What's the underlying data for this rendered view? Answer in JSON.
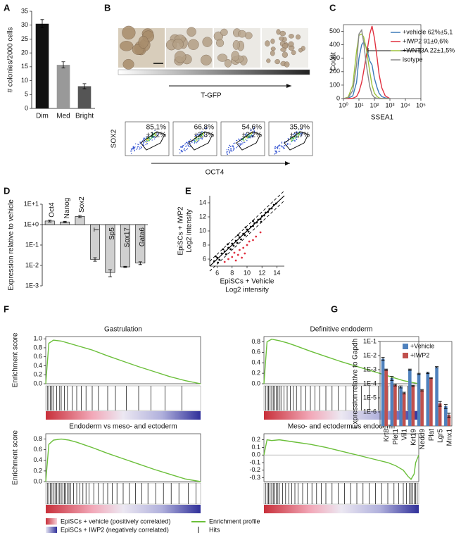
{
  "panel_labels": [
    "A",
    "B",
    "C",
    "D",
    "E",
    "F",
    "G"
  ],
  "panel_b": {
    "gradient_label": "T-GFP",
    "facs_gates": [
      [
        "85,1%",
        "±1,2%"
      ],
      [
        "66,8%",
        "±3,3%"
      ],
      [
        "54,6%",
        "±2,2%"
      ],
      [
        "35,9%",
        "±2,7%"
      ]
    ],
    "facs_x_label": "OCT4",
    "facs_y_label": "SOX2"
  },
  "gsea_legend": {
    "vehicle": "EpiSCs + vehicle (positively correlated)",
    "iwp2": "EpiSCs + IWP2 (negatively correlated)",
    "profile": "Enrichment profile",
    "hits": "Hits"
  },
  "chart_data": [
    {
      "type": "bar",
      "ylabel": "# colonies/2000 cells",
      "categories": [
        "Dim",
        "Med",
        "Bright"
      ],
      "values": [
        30.5,
        15.7,
        8
      ],
      "errors": [
        1.5,
        1.1,
        0.9
      ],
      "colors": [
        "#111111",
        "#999999",
        "#555555"
      ],
      "ylim": [
        0,
        35
      ],
      "yticks": [
        0,
        5,
        10,
        15,
        20,
        25,
        30,
        35
      ]
    },
    {
      "type": "line",
      "xlabel": "SSEA1",
      "ylabel": "Count",
      "xscale": "log",
      "x": [
        1,
        2,
        4,
        7,
        10,
        15,
        20,
        30,
        50,
        70,
        100,
        150,
        200,
        300,
        500,
        1000
      ],
      "series": [
        {
          "name": "+vehicle 62%±5,1",
          "color": "#3d7ab8",
          "values": [
            0,
            2,
            20,
            120,
            300,
            400,
            420,
            380,
            280,
            250,
            150,
            80,
            40,
            15,
            5,
            0
          ]
        },
        {
          "name": "+IWP2 91±0,6%",
          "color": "#e0303f",
          "values": [
            0,
            0,
            2,
            15,
            50,
            120,
            200,
            320,
            480,
            540,
            450,
            300,
            180,
            80,
            20,
            0
          ]
        },
        {
          "name": "+WNT3A 22±1,5%",
          "color": "#9cc23c",
          "values": [
            0,
            10,
            100,
            350,
            470,
            480,
            460,
            370,
            200,
            100,
            40,
            15,
            5,
            0,
            0,
            0
          ]
        },
        {
          "name": "isotype",
          "color": "#888888",
          "values": [
            0,
            5,
            60,
            250,
            480,
            510,
            420,
            250,
            90,
            30,
            8,
            2,
            0,
            0,
            0,
            0
          ]
        }
      ],
      "xlim": [
        1,
        100000
      ],
      "xticks": [
        {
          "value": 1,
          "label": "10⁰"
        },
        {
          "value": 10,
          "label": "10¹"
        },
        {
          "value": 100,
          "label": "10²"
        },
        {
          "value": 1000,
          "label": "10³"
        },
        {
          "value": 10000,
          "label": "10⁴"
        },
        {
          "value": 100000,
          "label": "10⁵"
        }
      ],
      "ylim": [
        0,
        550
      ],
      "yticks": [
        0,
        100,
        200,
        300,
        400,
        500
      ]
    },
    {
      "type": "bar",
      "ylabel": "Expression relative to vehicle",
      "yscale": "log",
      "bar_outline": "#000000",
      "categories": [
        "Oct4",
        "Nanog",
        "Sox2",
        "T",
        "Sp5",
        "Sox17",
        "Gata6"
      ],
      "values": [
        1.5,
        1.35,
        2.5,
        0.02,
        0.0045,
        0.0085,
        0.013
      ],
      "errors": [
        0.15,
        0.1,
        0.3,
        0.004,
        0.0017,
        0.0005,
        0.002
      ],
      "color": "#d0d0d0",
      "ylim": [
        0.001,
        10
      ],
      "yticks": [
        {
          "value": 10,
          "label": "1E+1"
        },
        {
          "value": 1,
          "label": "1E+0"
        },
        {
          "value": 0.1,
          "label": "1E-1"
        },
        {
          "value": 0.01,
          "label": "1E-2"
        },
        {
          "value": 0.001,
          "label": "1E-3"
        }
      ]
    },
    {
      "type": "scatter",
      "xlabel": [
        "EpiSCs + Vehicle",
        "Log2 intensity"
      ],
      "ylabel": [
        "EpiSCs + IWP2",
        "Log2 intensity"
      ],
      "series": [
        {
          "color": "#000000",
          "x": [
            6,
            6.3,
            6.6,
            7,
            7.2,
            7.5,
            7.8,
            8,
            8.2,
            8.5,
            8.7,
            9,
            9.2,
            9.5,
            9.7,
            10,
            10.2,
            10.5,
            10.8,
            11,
            11.3,
            11.5,
            11.8,
            12,
            12.3,
            12.5,
            12.8,
            13,
            13.3,
            13.6,
            13.9,
            6.8,
            7.4,
            8.8,
            9.8,
            5.6,
            5.8,
            6.1,
            10.8,
            11.9
          ],
          "values": [
            6.2,
            5.9,
            6.8,
            7.1,
            6.7,
            7.6,
            7.4,
            8.2,
            7.9,
            8.6,
            8.3,
            9.1,
            8.8,
            9.6,
            9.4,
            10.2,
            9.9,
            10.6,
            10.7,
            11.1,
            11.2,
            11.6,
            11.7,
            12.1,
            12.2,
            12.6,
            12.7,
            13.1,
            13.2,
            13.7,
            13.9,
            7.4,
            8.1,
            9.4,
            10.5,
            5.7,
            6.4,
            5.5,
            11.4,
            11.3
          ]
        },
        {
          "color": "#e0303f",
          "x": [
            7,
            7.5,
            8,
            8.3,
            8.8,
            9,
            9.5,
            9.7,
            10,
            10.3,
            10.8,
            11.2,
            8.5,
            9.3,
            11.8
          ],
          "values": [
            5.6,
            6,
            6.3,
            6.9,
            6.6,
            7.3,
            7.6,
            6.8,
            8,
            8.5,
            8.7,
            9.2,
            5.8,
            6.2,
            9.8
          ]
        }
      ],
      "xlim": [
        5,
        15
      ],
      "xticks": [
        6,
        8,
        10,
        12,
        14
      ],
      "ylim": [
        5,
        15
      ],
      "yticks": [
        6,
        8,
        10,
        12,
        14
      ]
    },
    {
      "type": "line",
      "title": "Gastrulation",
      "ylabel": "Enrichment score",
      "x": [
        0,
        2,
        5,
        10,
        15,
        20,
        30,
        40,
        50,
        60,
        70,
        80,
        90,
        100
      ],
      "series": [
        {
          "color": "#6bbf3a",
          "values": [
            0,
            0.9,
            0.97,
            0.95,
            0.9,
            0.85,
            0.75,
            0.62,
            0.5,
            0.38,
            0.27,
            0.16,
            0.07,
            0
          ]
        }
      ],
      "hits": [
        1,
        2,
        3,
        4,
        5,
        7,
        9,
        10,
        12,
        14,
        17,
        20,
        23,
        26,
        30,
        34,
        40,
        45,
        52,
        60,
        68,
        77,
        88
      ],
      "xlim": [
        0,
        100
      ],
      "ylim": [
        0,
        1.05
      ],
      "yticks": [
        {
          "value": 0,
          "label": "0.0"
        },
        0.2,
        0.4,
        0.6,
        0.8,
        {
          "value": 1,
          "label": "1.0"
        }
      ]
    },
    {
      "type": "line",
      "title": "Definitive endoderm",
      "x": [
        0,
        2,
        5,
        10,
        15,
        20,
        30,
        40,
        50,
        60,
        70,
        80,
        90,
        100
      ],
      "series": [
        {
          "color": "#6bbf3a",
          "values": [
            0,
            0.8,
            0.85,
            0.82,
            0.78,
            0.73,
            0.62,
            0.52,
            0.42,
            0.33,
            0.24,
            0.15,
            0.06,
            0
          ]
        }
      ],
      "hits": [
        1,
        2,
        3,
        4,
        5,
        6,
        7,
        8,
        9,
        10,
        11,
        13,
        15,
        17,
        19,
        21,
        24,
        27,
        30,
        33,
        36,
        40,
        44,
        48,
        53,
        58,
        63,
        68,
        74,
        80,
        87,
        93
      ],
      "xlim": [
        0,
        100
      ],
      "ylim": [
        0,
        0.9
      ],
      "yticks": [
        {
          "value": 0,
          "label": "0.0"
        },
        0.2,
        0.4,
        0.6,
        0.8
      ]
    },
    {
      "type": "line",
      "title": "Endoderm vs meso- and ectoderm",
      "ylabel": "Enrichment score",
      "x": [
        0,
        2,
        5,
        10,
        15,
        20,
        30,
        40,
        50,
        60,
        70,
        80,
        90,
        100
      ],
      "series": [
        {
          "color": "#6bbf3a",
          "values": [
            0,
            0.7,
            0.78,
            0.8,
            0.78,
            0.74,
            0.64,
            0.53,
            0.43,
            0.33,
            0.23,
            0.14,
            0.05,
            0
          ]
        }
      ],
      "hits": [
        1,
        2,
        3,
        4,
        5,
        6,
        7,
        8,
        9,
        10,
        11,
        12,
        13,
        14,
        15,
        16,
        18,
        20,
        22,
        24,
        26,
        28,
        31,
        34,
        37,
        40,
        43,
        46,
        50,
        54,
        58,
        62,
        66,
        71,
        76,
        81,
        86,
        92,
        97
      ],
      "xlim": [
        0,
        100
      ],
      "ylim": [
        0,
        0.9
      ],
      "yticks": [
        {
          "value": 0,
          "label": "0.0"
        },
        0.2,
        0.4,
        0.6,
        0.8
      ]
    },
    {
      "type": "line",
      "title": "Meso- and ectoderm vs endoderm",
      "x": [
        0,
        2,
        5,
        10,
        20,
        30,
        40,
        50,
        60,
        70,
        80,
        85,
        90,
        93,
        95,
        97,
        98,
        100
      ],
      "series": [
        {
          "color": "#6bbf3a",
          "values": [
            0,
            0.2,
            0.19,
            0.2,
            0.17,
            0.14,
            0.1,
            0.05,
            0,
            -0.05,
            -0.1,
            -0.14,
            -0.2,
            -0.28,
            -0.32,
            -0.25,
            -0.1,
            0
          ]
        }
      ],
      "hits": [
        1,
        2,
        3,
        4,
        5,
        6,
        7,
        8,
        9,
        10,
        12,
        14,
        16,
        18,
        20,
        22,
        25,
        28,
        31,
        34,
        37,
        40,
        44,
        48,
        52,
        56,
        60,
        64,
        68,
        72,
        76,
        80,
        84,
        87,
        90,
        92,
        94,
        95,
        96,
        97,
        98,
        99
      ],
      "xlim": [
        0,
        100
      ],
      "ylim": [
        -0.35,
        0.28
      ],
      "yticks": [
        -0.3,
        -0.2,
        -0.1,
        {
          "value": 0,
          "label": "0.0"
        },
        0.1,
        0.2
      ]
    },
    {
      "type": "bar",
      "ylabel": "Expression relative to Gapdh",
      "yscale": "log",
      "categories": [
        "Krt8",
        "Plet1",
        "Vil1",
        "Krt19",
        "Nedd9",
        "Plat",
        "Lgr5",
        "Mnx1"
      ],
      "series": [
        {
          "name": "+Vehicle",
          "color": "#4f81bd",
          "values": [
            0.006,
            0.00025,
            6e-05,
            0.001,
            0.0005,
            0.0006,
            0.0015,
            2.5e-06
          ],
          "errors": [
            0.0015,
            8e-05,
            1e-05,
            0.0001,
            5e-05,
            8e-05,
            0.00015,
            8e-07
          ]
        },
        {
          "name": "+IWP2",
          "color": "#c0504d",
          "values": [
            0.001,
            8e-05,
            2.2e-05,
            7e-05,
            3.5e-05,
            0.00025,
            4e-06,
            6e-07
          ],
          "errors": [
            0.0001,
            1e-05,
            3e-06,
            7e-06,
            4e-06,
            2e-05,
            1.5e-06,
            2e-07
          ]
        }
      ],
      "ylim": [
        1e-07,
        0.1
      ],
      "yticks": [
        {
          "value": 0.1,
          "label": "1E-1"
        },
        {
          "value": 0.01,
          "label": "1E-2"
        },
        {
          "value": 0.001,
          "label": "1E-3"
        },
        {
          "value": 0.0001,
          "label": "1E-4"
        },
        {
          "value": 1e-05,
          "label": "1E-5"
        },
        {
          "value": 1e-06,
          "label": "1E-6"
        }
      ]
    }
  ]
}
